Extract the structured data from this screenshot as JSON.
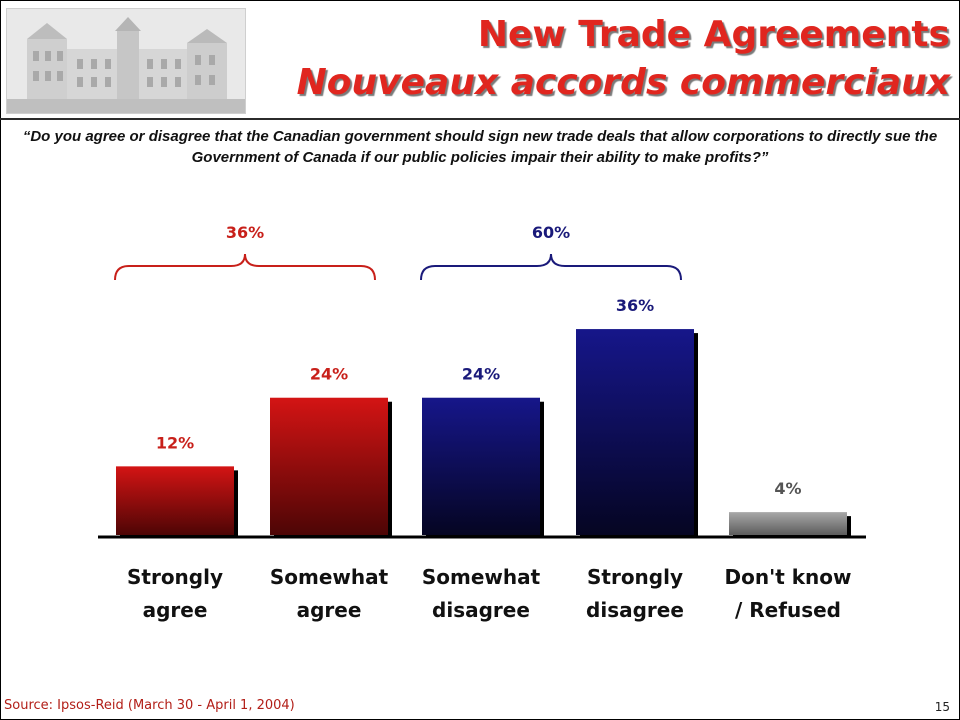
{
  "slide": {
    "title_en": "New Trade Agreements",
    "title_fr": "Nouveaux accords commerciaux",
    "question": "“Do you agree or disagree that the Canadian government should sign new trade deals that allow corporations to directly sue the Government of Canada if our public policies impair their ability to make profits?”",
    "source": "Source: Ipsos-Reid (March 30 - April 1, 2004)",
    "page_number": "15"
  },
  "chart_data": {
    "type": "bar",
    "categories": [
      "Strongly agree",
      "Somewhat agree",
      "Somewhat disagree",
      "Strongly disagree",
      "Don't know / Refused"
    ],
    "category_lines": [
      [
        "Strongly",
        "agree"
      ],
      [
        "Somewhat",
        "agree"
      ],
      [
        "Somewhat",
        "disagree"
      ],
      [
        "Strongly",
        "disagree"
      ],
      [
        "Don't know",
        "/ Refused"
      ]
    ],
    "values": [
      12,
      24,
      24,
      36,
      4
    ],
    "value_labels": [
      "12%",
      "24%",
      "24%",
      "36%",
      "4%"
    ],
    "bar_colors": [
      "#d41414",
      "#d41414",
      "#16167a",
      "#16167a",
      "#9a9a9a"
    ],
    "label_colors": [
      "#c8201a",
      "#c8201a",
      "#1a1a7a",
      "#1a1a7a",
      "#555555"
    ],
    "groups": [
      {
        "label": "36%",
        "value": 36,
        "from": 0,
        "to": 1,
        "color": "#c8201a"
      },
      {
        "label": "60%",
        "value": 60,
        "from": 2,
        "to": 3,
        "color": "#1a1a7a"
      }
    ],
    "ylim": [
      0,
      40
    ],
    "grid": false,
    "legend": "none"
  }
}
